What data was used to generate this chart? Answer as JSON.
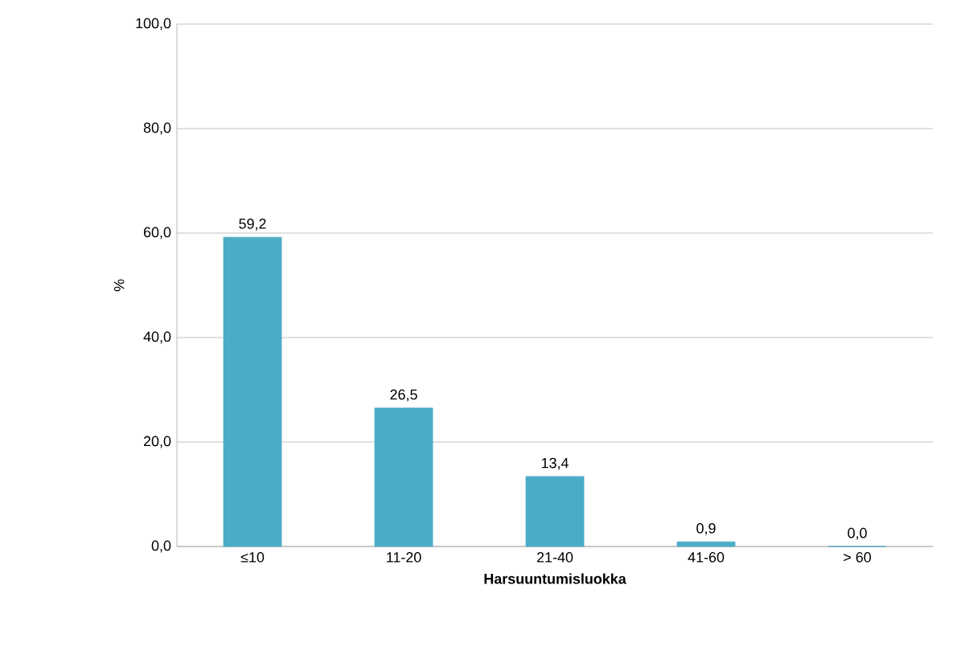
{
  "chart_data": {
    "type": "bar",
    "xlabel": "Harsuuntumisluokka",
    "ylabel": "%",
    "categories": [
      "≤10",
      "11-20",
      "21-40",
      "41-60",
      "> 60"
    ],
    "values": [
      59.2,
      26.5,
      13.4,
      0.9,
      0.0
    ],
    "value_labels": [
      "59,2",
      "26,5",
      "13,4",
      "0,9",
      "0,0"
    ],
    "color": "#4bacc6",
    "ylim": [
      0,
      100
    ],
    "yticks": [
      {
        "value": 0,
        "label": "0,0"
      },
      {
        "value": 20,
        "label": "20,0"
      },
      {
        "value": 40,
        "label": "40,0"
      },
      {
        "value": 60,
        "label": "60,0"
      },
      {
        "value": 80,
        "label": "80,0"
      },
      {
        "value": 100,
        "label": "100,0"
      }
    ],
    "grid": "y"
  }
}
